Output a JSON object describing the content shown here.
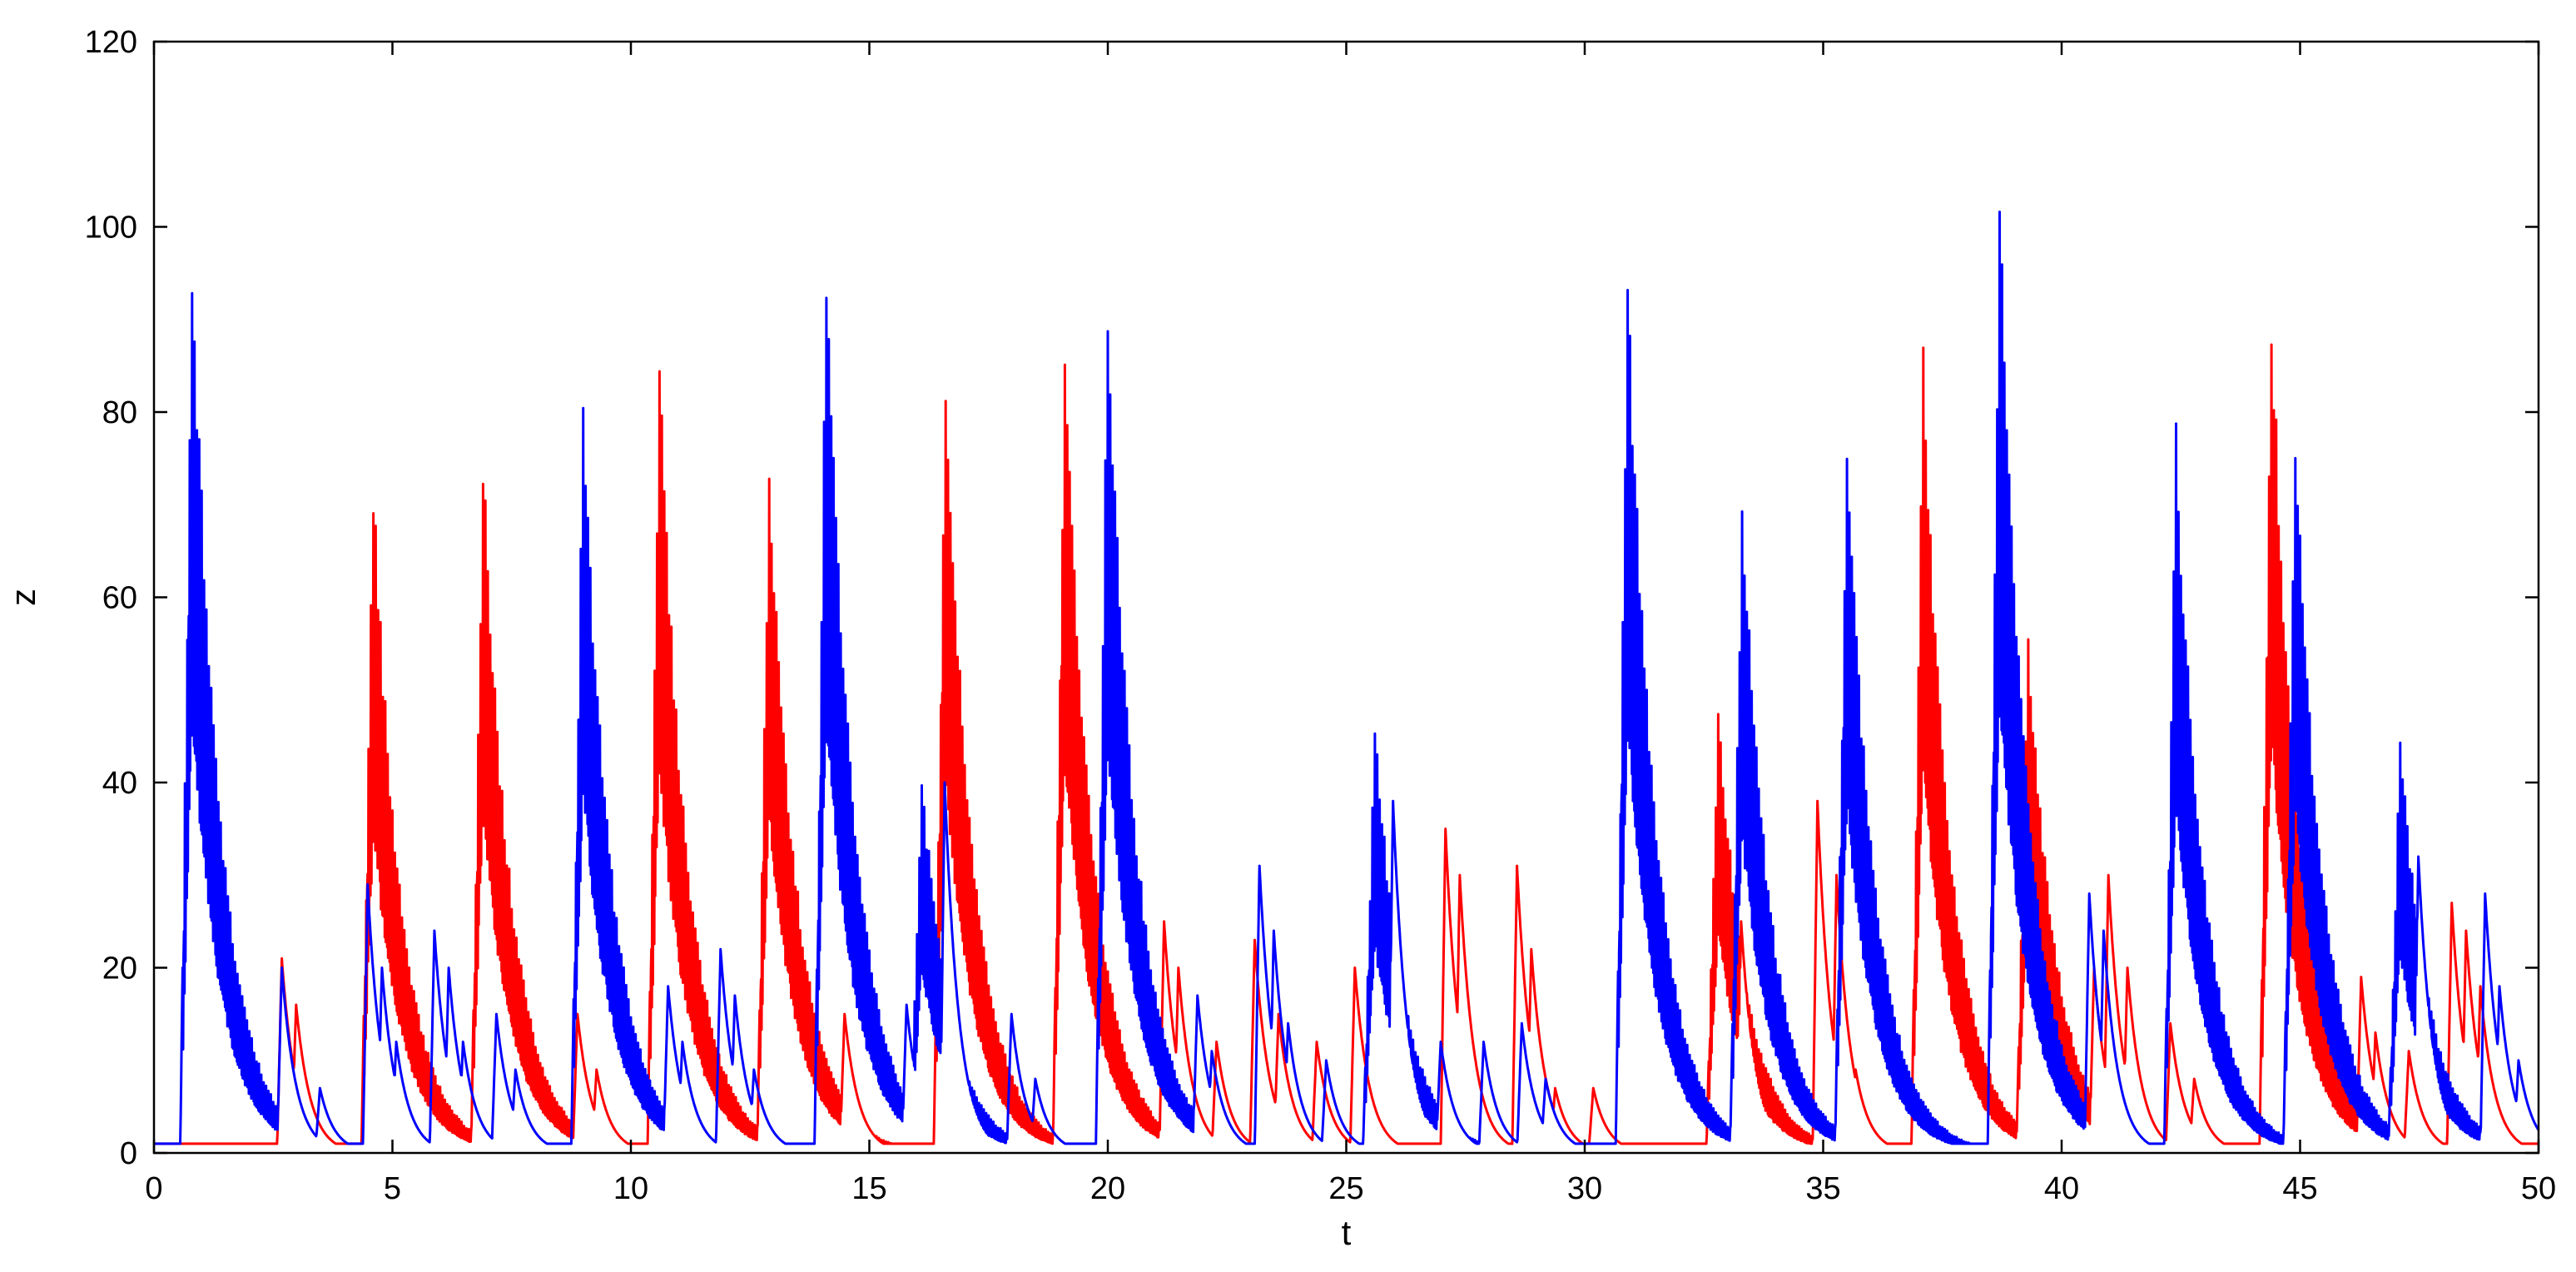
{
  "chart_data": {
    "type": "line",
    "title": "",
    "xlabel": "t",
    "ylabel": "z",
    "xlim": [
      0,
      50
    ],
    "ylim": [
      0,
      120
    ],
    "xticks": [
      0,
      5,
      10,
      15,
      20,
      25,
      30,
      35,
      40,
      45,
      50
    ],
    "yticks": [
      0,
      20,
      40,
      60,
      80,
      100,
      120
    ],
    "grid": false,
    "legend": "none",
    "series": [
      {
        "color": "#ff0000",
        "bursts": [
          [
            2.7,
            21
          ],
          [
            3.0,
            16
          ],
          [
            4.7,
            74
          ],
          [
            7.0,
            77
          ],
          [
            8.9,
            15
          ],
          [
            9.3,
            9
          ],
          [
            10.7,
            87
          ],
          [
            13.0,
            77
          ],
          [
            14.5,
            15
          ],
          [
            16.7,
            86
          ],
          [
            19.2,
            91
          ],
          [
            21.2,
            25
          ],
          [
            21.5,
            20
          ],
          [
            22.3,
            12
          ],
          [
            23.1,
            23
          ],
          [
            23.6,
            15
          ],
          [
            24.4,
            12
          ],
          [
            25.2,
            20
          ],
          [
            27.1,
            35
          ],
          [
            27.4,
            30
          ],
          [
            28.6,
            31
          ],
          [
            28.9,
            22
          ],
          [
            29.4,
            7
          ],
          [
            30.2,
            7
          ],
          [
            32.9,
            50
          ],
          [
            33.3,
            25
          ],
          [
            34.9,
            38
          ],
          [
            35.3,
            30
          ],
          [
            35.7,
            9
          ],
          [
            37.2,
            88
          ],
          [
            39.4,
            58
          ],
          [
            40.7,
            20
          ],
          [
            41.0,
            30
          ],
          [
            41.4,
            20
          ],
          [
            42.3,
            14
          ],
          [
            42.8,
            8
          ],
          [
            44.5,
            94
          ],
          [
            46.3,
            19
          ],
          [
            46.6,
            13
          ],
          [
            47.3,
            11
          ],
          [
            48.2,
            27
          ],
          [
            48.5,
            24
          ],
          [
            48.8,
            18
          ]
        ]
      },
      {
        "color": "#0000ff",
        "bursts": [
          [
            0.9,
            100
          ],
          [
            2.7,
            20
          ],
          [
            3.5,
            7
          ],
          [
            4.5,
            29
          ],
          [
            4.8,
            20
          ],
          [
            5.1,
            12
          ],
          [
            5.9,
            24
          ],
          [
            6.2,
            20
          ],
          [
            6.5,
            12
          ],
          [
            7.2,
            15
          ],
          [
            7.6,
            9
          ],
          [
            9.1,
            83
          ],
          [
            10.8,
            18
          ],
          [
            11.1,
            12
          ],
          [
            11.9,
            22
          ],
          [
            12.2,
            17
          ],
          [
            12.6,
            9
          ],
          [
            14.2,
            99
          ],
          [
            15.8,
            16
          ],
          [
            16.2,
            42
          ],
          [
            16.6,
            40
          ],
          [
            18.0,
            15
          ],
          [
            18.5,
            8
          ],
          [
            20.1,
            94
          ],
          [
            21.9,
            17
          ],
          [
            22.2,
            11
          ],
          [
            23.2,
            31
          ],
          [
            23.5,
            24
          ],
          [
            23.8,
            14
          ],
          [
            24.6,
            10
          ],
          [
            25.7,
            48
          ],
          [
            26.0,
            38
          ],
          [
            27.0,
            12
          ],
          [
            27.9,
            12
          ],
          [
            28.7,
            14
          ],
          [
            29.2,
            8
          ],
          [
            31.0,
            98
          ],
          [
            33.4,
            73
          ],
          [
            35.6,
            80
          ],
          [
            38.8,
            105
          ],
          [
            40.6,
            28
          ],
          [
            40.9,
            24
          ],
          [
            42.5,
            80
          ],
          [
            45.0,
            79
          ],
          [
            47.2,
            46
          ],
          [
            47.5,
            32
          ],
          [
            48.9,
            28
          ],
          [
            49.2,
            18
          ],
          [
            49.6,
            10
          ]
        ]
      }
    ]
  }
}
